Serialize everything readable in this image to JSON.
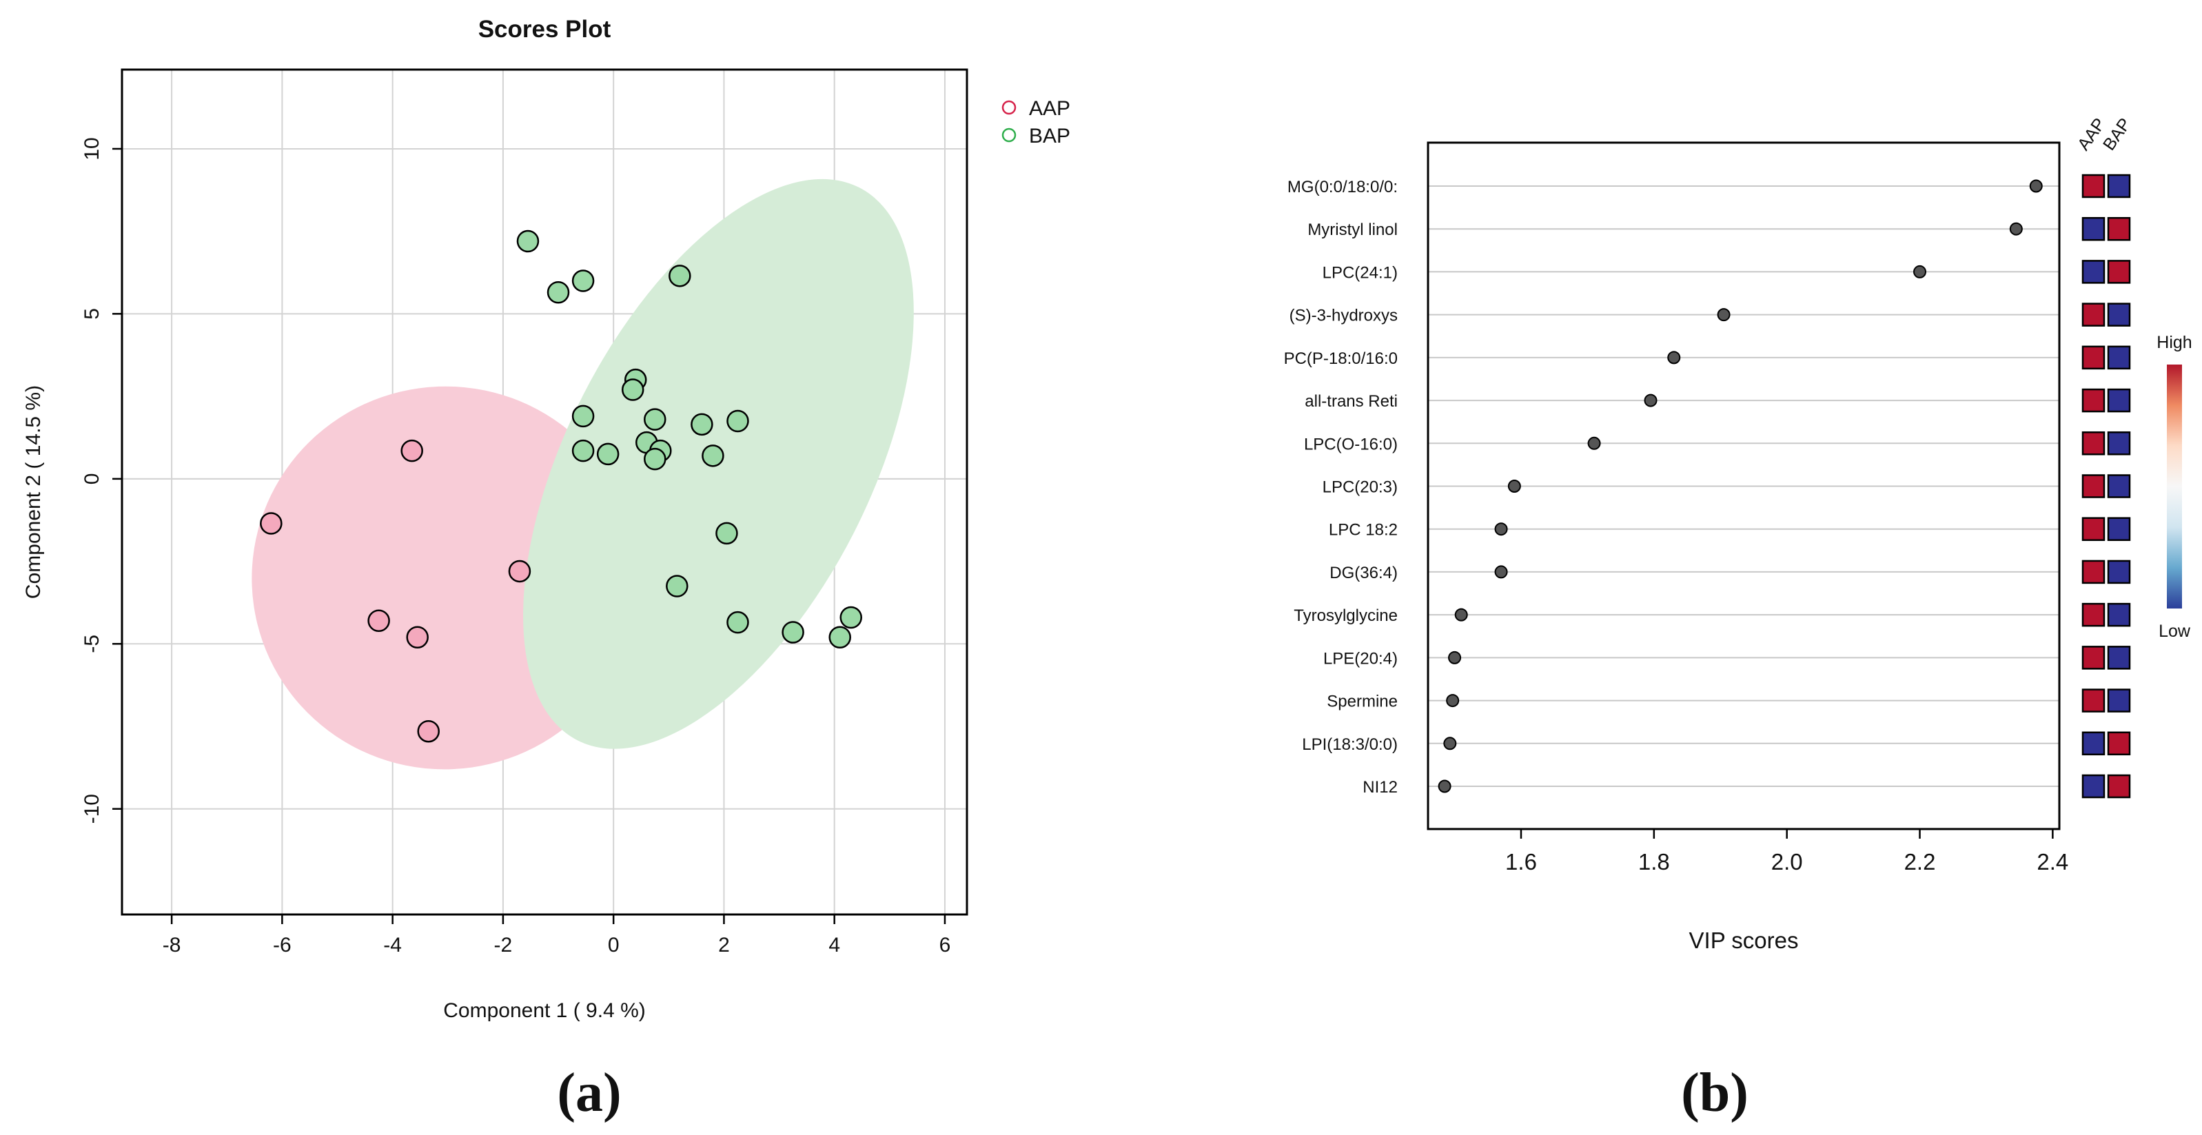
{
  "chart_data": [
    {
      "type": "scatter",
      "panel_label": "(a)",
      "title": "Scores Plot",
      "xlabel": "Component 1 ( 9.4 %)",
      "ylabel": "Component 2 ( 14.5 %)",
      "xlim": [
        -8.9,
        6.4
      ],
      "ylim": [
        -13.2,
        12.4
      ],
      "xticks": [
        -8,
        -6,
        -4,
        -2,
        0,
        2,
        4,
        6
      ],
      "yticks": [
        -10,
        -5,
        0,
        5,
        10
      ],
      "grid": true,
      "legend_position": "top-right-outside",
      "series": [
        {
          "name": "AAP",
          "color": "#e8708f",
          "fill": "#f4a9bd",
          "ellipse_fill": "#f8ccd7",
          "legend_color": "#d6224a",
          "ellipse": {
            "cx": -3.05,
            "cy": -3.0,
            "rx": 3.5,
            "ry": 5.8,
            "angle_deg": -8
          },
          "points": [
            [
              -6.2,
              -1.35
            ],
            [
              -3.65,
              0.85
            ],
            [
              -4.25,
              -4.3
            ],
            [
              -3.55,
              -4.8
            ],
            [
              -3.35,
              -7.65
            ],
            [
              -1.7,
              -2.8
            ]
          ]
        },
        {
          "name": "BAP",
          "color": "#78c98a",
          "fill": "#9bd9a6",
          "ellipse_fill": "#d5ecd7",
          "legend_color": "#2fae4c",
          "ellipse": {
            "cx": 1.9,
            "cy": 0.45,
            "rx": 2.75,
            "ry": 9.4,
            "angle_deg": 27
          },
          "points": [
            [
              -1.55,
              7.2
            ],
            [
              -1.0,
              5.65
            ],
            [
              -0.55,
              6.0
            ],
            [
              1.2,
              6.15
            ],
            [
              0.4,
              3.0
            ],
            [
              0.35,
              2.7
            ],
            [
              -0.55,
              1.9
            ],
            [
              0.75,
              1.8
            ],
            [
              1.6,
              1.65
            ],
            [
              2.25,
              1.75
            ],
            [
              -0.55,
              0.85
            ],
            [
              -0.1,
              0.75
            ],
            [
              0.6,
              1.1
            ],
            [
              0.85,
              0.85
            ],
            [
              0.75,
              0.6
            ],
            [
              1.8,
              0.7
            ],
            [
              2.05,
              -1.65
            ],
            [
              1.15,
              -3.25
            ],
            [
              2.25,
              -4.35
            ],
            [
              3.25,
              -4.65
            ],
            [
              4.1,
              -4.8
            ],
            [
              4.3,
              -4.2
            ]
          ]
        }
      ]
    },
    {
      "type": "dot",
      "panel_label": "(b)",
      "xlabel": "VIP scores",
      "xlim": [
        1.46,
        2.41
      ],
      "xticks": [
        1.6,
        1.8,
        2.0,
        2.2,
        2.4
      ],
      "group_labels": [
        "AAP",
        "BAP"
      ],
      "colorbar": {
        "high_label": "High",
        "low_label": "Low",
        "colors": [
          "#b2182b",
          "#ef8a62",
          "#fddbc7",
          "#f7f7f7",
          "#d1e5f0",
          "#67a9cf",
          "#2c3f9a"
        ]
      },
      "high_color": "#b5122e",
      "low_color": "#2e3192",
      "features": [
        {
          "name": "MG(0:0/18:0/0:",
          "vip": 2.375,
          "levels": [
            "high",
            "low"
          ]
        },
        {
          "name": "Myristyl linol",
          "vip": 2.345,
          "levels": [
            "low",
            "high"
          ]
        },
        {
          "name": "LPC(24:1)",
          "vip": 2.2,
          "levels": [
            "low",
            "high"
          ]
        },
        {
          "name": "(S)-3-hydroxys",
          "vip": 1.905,
          "levels": [
            "high",
            "low"
          ]
        },
        {
          "name": "PC(P-18:0/16:0",
          "vip": 1.83,
          "levels": [
            "high",
            "low"
          ]
        },
        {
          "name": "all-trans Reti",
          "vip": 1.795,
          "levels": [
            "high",
            "low"
          ]
        },
        {
          "name": "LPC(O-16:0)",
          "vip": 1.71,
          "levels": [
            "high",
            "low"
          ]
        },
        {
          "name": "LPC(20:3)",
          "vip": 1.59,
          "levels": [
            "high",
            "low"
          ]
        },
        {
          "name": "LPC 18:2",
          "vip": 1.57,
          "levels": [
            "high",
            "low"
          ]
        },
        {
          "name": "DG(36:4)",
          "vip": 1.57,
          "levels": [
            "high",
            "low"
          ]
        },
        {
          "name": "Tyrosylglycine",
          "vip": 1.51,
          "levels": [
            "high",
            "low"
          ]
        },
        {
          "name": "LPE(20:4)",
          "vip": 1.5,
          "levels": [
            "high",
            "low"
          ]
        },
        {
          "name": "Spermine",
          "vip": 1.497,
          "levels": [
            "high",
            "low"
          ]
        },
        {
          "name": "LPI(18:3/0:0)",
          "vip": 1.493,
          "levels": [
            "low",
            "high"
          ]
        },
        {
          "name": "NI12",
          "vip": 1.485,
          "levels": [
            "low",
            "high"
          ]
        }
      ]
    }
  ]
}
